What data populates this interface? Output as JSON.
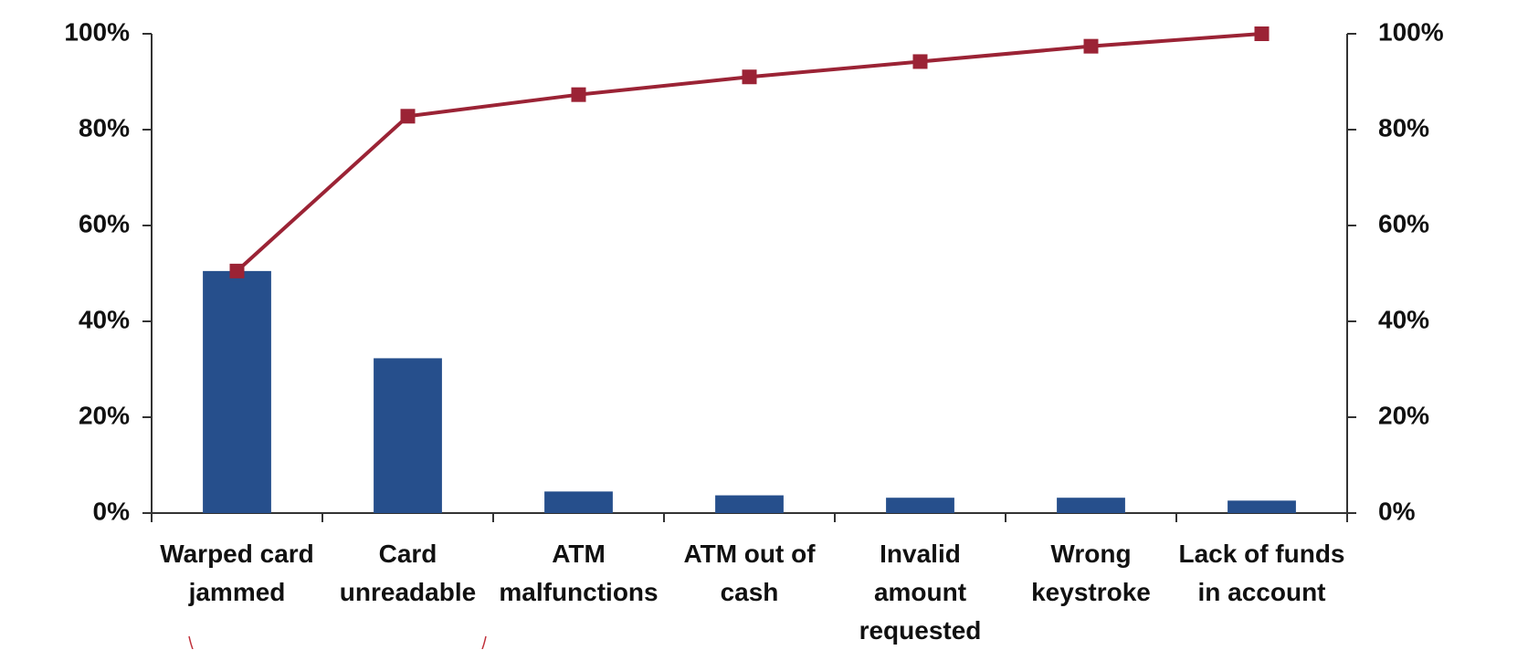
{
  "chart_data": {
    "type": "bar",
    "categories": [
      "Warped card jammed",
      "Card unreadable",
      "ATM malfunctions",
      "ATM out of cash",
      "Invalid amount requested",
      "Wrong keystroke",
      "Lack of funds in account"
    ],
    "series": [
      {
        "type": "bar",
        "color": "#264f8c",
        "values": [
          50.5,
          32.3,
          4.5,
          3.7,
          3.2,
          3.2,
          2.6
        ]
      },
      {
        "type": "line",
        "axis": "y2",
        "color": "#9b2335",
        "values": [
          50.5,
          82.8,
          87.3,
          91.0,
          94.2,
          97.4,
          100
        ]
      }
    ],
    "ylim": [
      0,
      100
    ],
    "yticks": [
      {
        "value": 0,
        "label": "0%"
      },
      {
        "value": 20,
        "label": "20%"
      },
      {
        "value": 40,
        "label": "40%"
      },
      {
        "value": 60,
        "label": "60%"
      },
      {
        "value": 80,
        "label": "80%"
      },
      {
        "value": 100,
        "label": "100%"
      }
    ],
    "y2lim": [
      0,
      100
    ],
    "y2ticks": [
      {
        "value": 0,
        "label": "0%"
      },
      {
        "value": 20,
        "label": "20%"
      },
      {
        "value": 40,
        "label": "40%"
      },
      {
        "value": 60,
        "label": "60%"
      },
      {
        "value": 80,
        "label": "80%"
      },
      {
        "value": 100,
        "label": "100%"
      }
    ],
    "grid": false
  }
}
